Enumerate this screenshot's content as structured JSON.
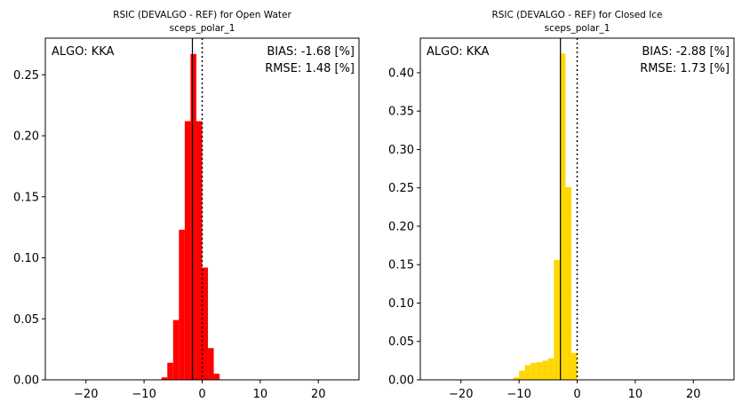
{
  "chart_data": [
    {
      "type": "bar",
      "title": "RSIC (DEVALGO - REF) for Open Water",
      "subtitle": "sceps_polar_1",
      "xlabel": "",
      "ylabel": "",
      "xlim": [
        -27,
        27
      ],
      "ylim": [
        0,
        0.28
      ],
      "xticks": [
        -20,
        -10,
        0,
        10,
        20
      ],
      "xtick_labels": [
        "−20",
        "−10",
        "0",
        "10",
        "20"
      ],
      "yticks": [
        0,
        0.05,
        0.1,
        0.15,
        0.2,
        0.25
      ],
      "ytick_labels": [
        "0.00",
        "0.05",
        "0.10",
        "0.15",
        "0.20",
        "0.25"
      ],
      "bin_width": 1,
      "bar_color": "#ff0000",
      "bins": [
        {
          "x0": -7,
          "value": 0.002
        },
        {
          "x0": -6,
          "value": 0.014
        },
        {
          "x0": -5,
          "value": 0.049
        },
        {
          "x0": -4,
          "value": 0.123
        },
        {
          "x0": -3,
          "value": 0.212
        },
        {
          "x0": -2,
          "value": 0.267
        },
        {
          "x0": -1,
          "value": 0.212
        },
        {
          "x0": 0,
          "value": 0.092
        },
        {
          "x0": 1,
          "value": 0.026
        },
        {
          "x0": 2,
          "value": 0.005
        }
      ],
      "mean_line": -1.68,
      "zero_line": 0,
      "annotations": {
        "algo": "ALGO: KKA",
        "bias": "BIAS: -1.68 [%]",
        "rmse": "RMSE: 1.48 [%]"
      },
      "grid": false,
      "legend": "none"
    },
    {
      "type": "bar",
      "title": "RSIC (DEVALGO - REF) for Closed Ice",
      "subtitle": "sceps_polar_1",
      "xlabel": "",
      "ylabel": "",
      "xlim": [
        -27,
        27
      ],
      "ylim": [
        0,
        0.445
      ],
      "xticks": [
        -20,
        -10,
        0,
        10,
        20
      ],
      "xtick_labels": [
        "−20",
        "−10",
        "0",
        "10",
        "20"
      ],
      "yticks": [
        0,
        0.05,
        0.1,
        0.15,
        0.2,
        0.25,
        0.3,
        0.35,
        0.4
      ],
      "ytick_labels": [
        "0.00",
        "0.05",
        "0.10",
        "0.15",
        "0.20",
        "0.25",
        "0.30",
        "0.35",
        "0.40"
      ],
      "bin_width": 1,
      "bar_color": "#ffd700",
      "bins": [
        {
          "x0": -11,
          "value": 0.003
        },
        {
          "x0": -10,
          "value": 0.012
        },
        {
          "x0": -9,
          "value": 0.019
        },
        {
          "x0": -8,
          "value": 0.022
        },
        {
          "x0": -7,
          "value": 0.023
        },
        {
          "x0": -6,
          "value": 0.025
        },
        {
          "x0": -5,
          "value": 0.028
        },
        {
          "x0": -4,
          "value": 0.156
        },
        {
          "x0": -3,
          "value": 0.425
        },
        {
          "x0": -2,
          "value": 0.251
        },
        {
          "x0": -1,
          "value": 0.035
        }
      ],
      "mean_line": -2.88,
      "zero_line": 0,
      "annotations": {
        "algo": "ALGO: KKA",
        "bias": "BIAS: -2.88 [%]",
        "rmse": "RMSE: 1.73 [%]"
      },
      "grid": false,
      "legend": "none"
    }
  ]
}
